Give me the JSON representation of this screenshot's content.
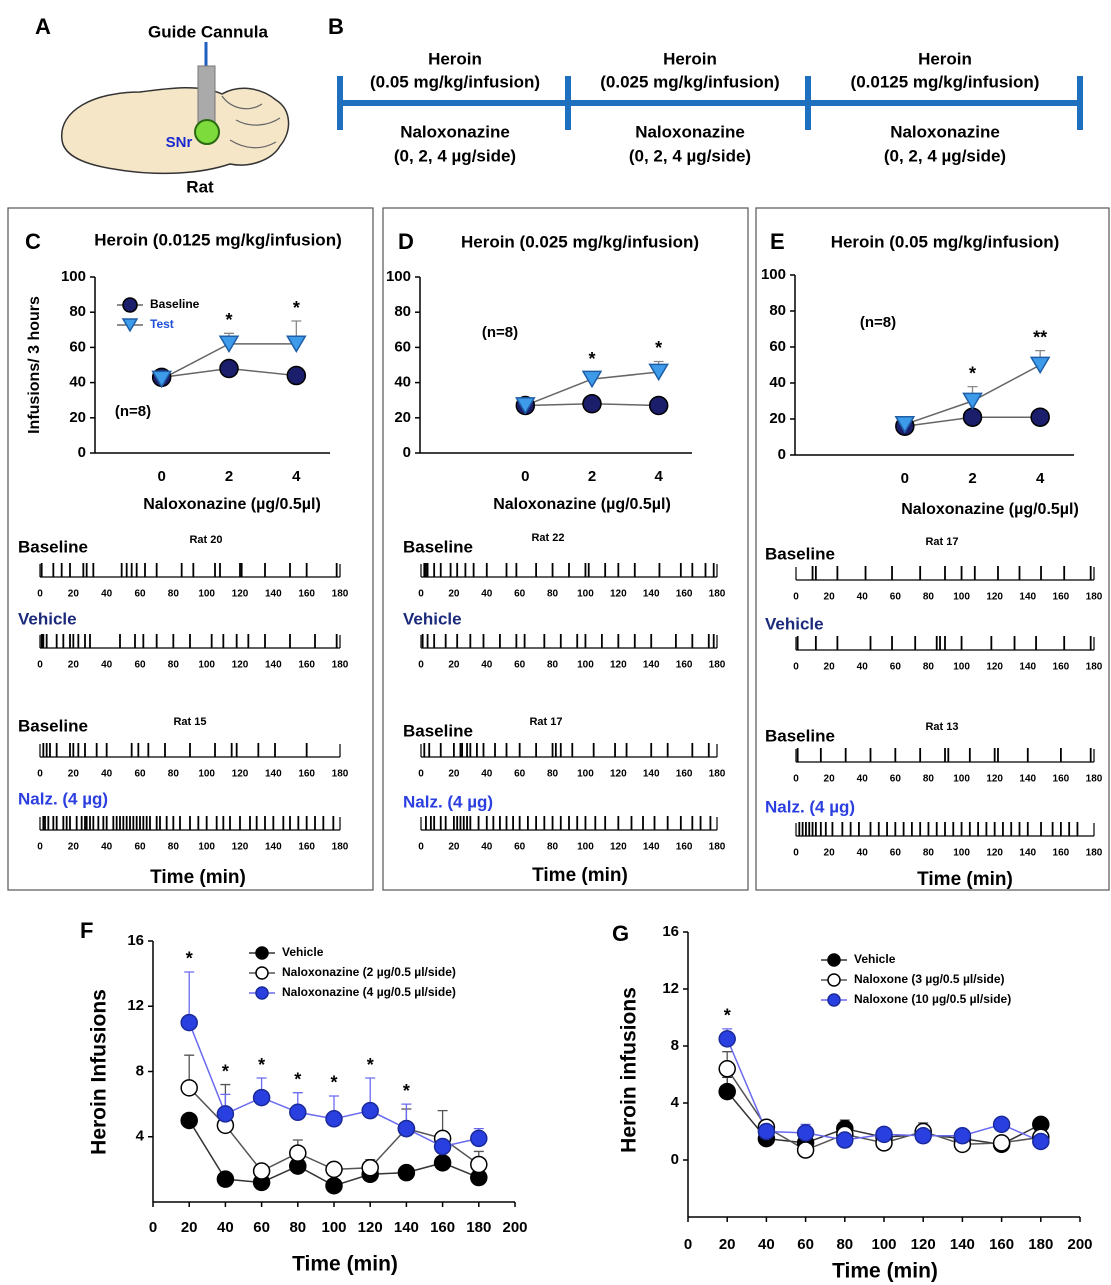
{
  "diagram": {
    "panel_a": {
      "label": "A",
      "cannula": "Guide Cannula",
      "region": "SNr",
      "species": "Rat"
    },
    "panel_b": {
      "label": "B",
      "segments": [
        {
          "drug": "Heroin",
          "heroin_dose": "(0.05 mg/kg/infusion)",
          "antagonist": "Naloxonazine",
          "antagonist_dose": "(0, 2, 4 µg/side)"
        },
        {
          "drug": "Heroin",
          "heroin_dose": "(0.025 mg/kg/infusion)",
          "antagonist": "Naloxonazine",
          "antagonist_dose": "(0, 2, 4 µg/side)"
        },
        {
          "drug": "Heroin",
          "heroin_dose": "(0.0125 mg/kg/infusion)",
          "antagonist": "Naloxonazine",
          "antagonist_dose": "(0, 2, 4 µg/side)"
        }
      ]
    }
  },
  "chart_data": [
    {
      "type": "line",
      "panel": "C",
      "title": "Heroin (0.0125 mg/kg/infusion)",
      "xlabel": "Naloxonazine (µg/0.5µl)",
      "ylabel": "Infusions/ 3 hours",
      "annotation": "(n=8)",
      "categories": [
        "0",
        "2",
        "4"
      ],
      "series": [
        {
          "name": "Baseline",
          "color": "#1b1f6b",
          "edgecolor": "#000000",
          "line_color": "#666666",
          "text_color": "#000000",
          "marker": "circle",
          "values": [
            43,
            48,
            44
          ]
        },
        {
          "name": "Test",
          "color": "#3d9be9",
          "edgecolor": "#1f5fa8",
          "line_color": "#666666",
          "text_color": "#1f4fd8",
          "marker": "triangle-down",
          "values": [
            42,
            62,
            62
          ],
          "errors": [
            2,
            6,
            13
          ]
        }
      ],
      "significance": [
        null,
        "*",
        "*"
      ],
      "ylim": [
        0,
        100
      ],
      "yticks": [
        0,
        20,
        40,
        60,
        80,
        100
      ],
      "legend": true
    },
    {
      "type": "raster",
      "title": "Rat 20",
      "xlim": [
        0,
        180
      ],
      "xticks": [
        0,
        20,
        40,
        60,
        80,
        100,
        120,
        140,
        160,
        180
      ],
      "rows": [
        {
          "name": "Baseline",
          "color": "#000000",
          "events": [
            1,
            8,
            13,
            18,
            26,
            28,
            32,
            49,
            52,
            55,
            58,
            63,
            70,
            85,
            92,
            105,
            108,
            120,
            121,
            135,
            150,
            160,
            178
          ]
        },
        {
          "name": "Vehicle",
          "color": "#1b2a7a",
          "events": [
            1,
            2,
            4,
            10,
            14,
            18,
            20,
            23,
            27,
            30,
            48,
            57,
            62,
            70,
            80,
            90,
            103,
            110,
            118,
            125,
            135,
            150,
            165,
            178
          ]
        }
      ]
    },
    {
      "type": "raster",
      "title": "Rat 15",
      "xlabel": "Time (min)",
      "xlim": [
        0,
        180
      ],
      "xticks": [
        0,
        20,
        40,
        60,
        80,
        100,
        120,
        140,
        160,
        180
      ],
      "rows": [
        {
          "name": "Baseline",
          "color": "#000000",
          "events": [
            2,
            4,
            6,
            10,
            18,
            20,
            23,
            27,
            34,
            40,
            55,
            59,
            65,
            75,
            90,
            105,
            115,
            118,
            131,
            141,
            160
          ]
        },
        {
          "name": "Nalz. (4 µg)",
          "color": "#2b3fe0",
          "events": [
            2,
            3,
            5,
            8,
            10,
            14,
            16,
            18,
            22,
            25,
            27,
            28,
            30,
            32,
            35,
            38,
            40,
            44,
            46,
            48,
            50,
            52,
            54,
            56,
            58,
            60,
            62,
            64,
            66,
            70,
            72,
            76,
            80,
            84,
            90,
            95,
            100,
            106,
            110,
            114,
            120,
            126,
            130,
            135,
            140,
            146,
            150,
            155,
            160,
            165,
            170,
            176
          ]
        }
      ]
    },
    {
      "type": "line",
      "panel": "D",
      "title": "Heroin (0.025 mg/kg/infusion)",
      "xlabel": "Naloxonazine (µg/0.5µl)",
      "annotation": "(n=8)",
      "categories": [
        "0",
        "2",
        "4"
      ],
      "series": [
        {
          "color": "#1b1f6b",
          "edgecolor": "#000000",
          "line_color": "#666666",
          "marker": "circle",
          "values": [
            27,
            28,
            27
          ]
        },
        {
          "color": "#3d9be9",
          "edgecolor": "#1f5fa8",
          "line_color": "#666666",
          "marker": "triangle-down",
          "values": [
            27,
            42,
            46
          ],
          "errors": [
            1,
            4,
            6
          ]
        }
      ],
      "significance": [
        null,
        "*",
        "*"
      ],
      "ylim": [
        0,
        100
      ],
      "yticks": [
        0,
        20,
        40,
        60,
        80,
        100
      ],
      "legend": false
    },
    {
      "type": "raster",
      "title": "Rat 22",
      "xlim": [
        0,
        180
      ],
      "xticks": [
        0,
        20,
        40,
        60,
        80,
        100,
        120,
        140,
        160,
        180
      ],
      "rows": [
        {
          "name": "Baseline",
          "color": "#000000",
          "events": [
            2,
            3,
            4,
            8,
            12,
            18,
            22,
            27,
            32,
            40,
            52,
            58,
            70,
            80,
            90,
            100,
            102,
            112,
            120,
            130,
            145,
            158,
            165,
            173,
            178
          ]
        },
        {
          "name": "Vehicle",
          "color": "#1b2a7a",
          "events": [
            1,
            4,
            8,
            15,
            22,
            30,
            38,
            48,
            58,
            63,
            75,
            85,
            95,
            100,
            110,
            120,
            130,
            140,
            155,
            165,
            175,
            178
          ]
        }
      ]
    },
    {
      "type": "raster",
      "title": "Rat 17",
      "xlabel": "Time (min)",
      "xlim": [
        0,
        180
      ],
      "xticks": [
        0,
        20,
        40,
        60,
        80,
        100,
        120,
        140,
        160,
        180
      ],
      "rows": [
        {
          "name": "Baseline",
          "color": "#000000",
          "events": [
            2,
            5,
            12,
            20,
            24,
            25,
            28,
            30,
            34,
            38,
            45,
            52,
            60,
            70,
            80,
            82,
            85,
            92,
            105,
            118,
            125,
            140,
            150,
            165,
            175
          ]
        },
        {
          "name": "Nalz. (4 µg)",
          "color": "#2b3fe0",
          "events": [
            3,
            6,
            8,
            12,
            15,
            20,
            22,
            24,
            26,
            28,
            30,
            35,
            40,
            44,
            48,
            52,
            56,
            60,
            65,
            70,
            75,
            80,
            85,
            90,
            95,
            100,
            106,
            112,
            120,
            128,
            135,
            142,
            150,
            158,
            165,
            170,
            176
          ]
        }
      ]
    },
    {
      "type": "line",
      "panel": "E",
      "title": "Heroin (0.05 mg/kg/infusion)",
      "xlabel": "Naloxonazine (µg/0.5µl)",
      "annotation": "(n=8)",
      "categories": [
        "0",
        "2",
        "4"
      ],
      "series": [
        {
          "color": "#1b1f6b",
          "edgecolor": "#000000",
          "line_color": "#666666",
          "marker": "circle",
          "values": [
            16,
            21,
            21
          ]
        },
        {
          "color": "#3d9be9",
          "edgecolor": "#1f5fa8",
          "line_color": "#666666",
          "marker": "triangle-down",
          "values": [
            17,
            30,
            50
          ],
          "errors": [
            1,
            8,
            8
          ]
        }
      ],
      "significance": [
        null,
        "*",
        "**"
      ],
      "ylim": [
        0,
        100
      ],
      "yticks": [
        0,
        20,
        40,
        60,
        80,
        100
      ],
      "legend": false
    },
    {
      "type": "raster",
      "title": "Rat 17",
      "xlim": [
        0,
        180
      ],
      "xticks": [
        0,
        20,
        40,
        60,
        80,
        100,
        120,
        140,
        160,
        180
      ],
      "rows": [
        {
          "name": "Baseline",
          "color": "#000000",
          "events": [
            10,
            12,
            25,
            42,
            58,
            75,
            90,
            100,
            108,
            122,
            135,
            148,
            162,
            178
          ]
        },
        {
          "name": "Vehicle",
          "color": "#1b2a7a",
          "events": [
            1,
            12,
            25,
            45,
            58,
            72,
            85,
            87,
            90,
            100,
            118,
            132,
            145,
            162,
            178
          ]
        }
      ]
    },
    {
      "type": "raster",
      "title": "Rat 13",
      "xlabel": "Time (min)",
      "xlim": [
        0,
        180
      ],
      "xticks": [
        0,
        20,
        40,
        60,
        80,
        100,
        120,
        140,
        160,
        180
      ],
      "rows": [
        {
          "name": "Baseline",
          "color": "#000000",
          "events": [
            1,
            15,
            30,
            45,
            60,
            75,
            90,
            92,
            105,
            120,
            122,
            140,
            160,
            178
          ]
        },
        {
          "name": "Nalz. (4 µg)",
          "color": "#2b3fe0",
          "events": [
            2,
            4,
            6,
            8,
            10,
            12,
            15,
            18,
            22,
            28,
            33,
            38,
            45,
            50,
            55,
            60,
            65,
            70,
            75,
            80,
            85,
            90,
            95,
            100,
            105,
            110,
            115,
            120,
            125,
            130,
            135,
            140,
            148,
            155,
            160,
            165,
            170
          ]
        }
      ]
    },
    {
      "type": "line",
      "panel": "F",
      "xlabel": "Time (min)",
      "ylabel": "Heroin Infusions",
      "x": [
        20,
        40,
        60,
        80,
        100,
        120,
        140,
        160,
        180
      ],
      "xlim": [
        0,
        200
      ],
      "xticks": [
        0,
        20,
        40,
        60,
        80,
        100,
        120,
        140,
        160,
        180,
        200
      ],
      "ylim": [
        0,
        16
      ],
      "yticks": [
        4,
        8,
        12,
        16
      ],
      "series": [
        {
          "name": "Vehicle",
          "color": "#000000",
          "edgecolor": "#000000",
          "line_color": "#333333",
          "text_color": "#000000",
          "marker": "circle",
          "values": [
            5,
            1.4,
            1.2,
            2.2,
            1.0,
            1.7,
            1.8,
            2.4,
            1.5
          ]
        },
        {
          "name": "Naloxonazine (2 µg/0.5 µl/side)",
          "color": "#ffffff",
          "edgecolor": "#000000",
          "line_color": "#555555",
          "text_color": "#000000",
          "marker": "circle",
          "values": [
            7,
            4.7,
            1.9,
            3.0,
            2.0,
            2.1,
            4.5,
            3.9,
            2.3
          ],
          "errors": [
            2,
            2.5,
            0.3,
            0.8,
            0.3,
            0.5,
            1.2,
            1.7,
            0.8
          ]
        },
        {
          "name": "Naloxonazine (4 µg/0.5 µl/side)",
          "color": "#2a3fe0",
          "edgecolor": "#1a2a9a",
          "line_color": "#6a6af0",
          "text_color": "#000000",
          "marker": "circle",
          "values": [
            11,
            5.4,
            6.4,
            5.5,
            5.1,
            5.6,
            4.5,
            3.4,
            3.9
          ],
          "errors": [
            3.1,
            1.2,
            1.2,
            1.2,
            1.4,
            2,
            1.5,
            0.8,
            0.6
          ]
        }
      ],
      "significance": [
        "*",
        "*",
        "*",
        "*",
        "*",
        "*",
        "*",
        null,
        null
      ],
      "legend": true
    },
    {
      "type": "line",
      "panel": "G",
      "xlabel": "Time (min)",
      "ylabel": "Heroin infusions",
      "x": [
        20,
        40,
        60,
        80,
        100,
        120,
        140,
        160,
        180
      ],
      "xlim": [
        0,
        200
      ],
      "xticks": [
        0,
        20,
        40,
        60,
        80,
        100,
        120,
        140,
        160,
        180,
        200
      ],
      "ylim": [
        -4,
        16
      ],
      "yticks": [
        0,
        4,
        8,
        12,
        16
      ],
      "series": [
        {
          "name": "Vehicle",
          "color": "#000000",
          "edgecolor": "#000000",
          "line_color": "#333333",
          "text_color": "#000000",
          "marker": "circle",
          "values": [
            4.8,
            1.5,
            1.2,
            2.2,
            1.6,
            1.8,
            1.5,
            1.1,
            2.5
          ],
          "errors": [
            1,
            0.3,
            0.3,
            0.6,
            0.3,
            0.3,
            0.3,
            0.3,
            0.3
          ]
        },
        {
          "name": "Naloxone (3 µg/0.5 µl/side)",
          "color": "#ffffff",
          "edgecolor": "#000000",
          "line_color": "#555555",
          "text_color": "#000000",
          "marker": "circle",
          "values": [
            6.4,
            2.3,
            0.7,
            1.8,
            1.2,
            2.0,
            1.1,
            1.2,
            1.6
          ],
          "errors": [
            1.2,
            0.4,
            0.3,
            0.5,
            0.3,
            0.6,
            0.3,
            0.3,
            0.4
          ]
        },
        {
          "name": "Naloxone (10 µg/0.5 µl/side)",
          "color": "#2a3fe0",
          "edgecolor": "#1a2a9a",
          "line_color": "#6a6af0",
          "text_color": "#000000",
          "marker": "circle",
          "values": [
            8.5,
            2.0,
            1.9,
            1.4,
            1.8,
            1.7,
            1.7,
            2.5,
            1.3
          ],
          "errors": [
            0.7,
            0.3,
            0.6,
            0.3,
            0.3,
            0.4,
            0.3,
            0.3,
            0.3
          ]
        }
      ],
      "significance": [
        "*",
        null,
        null,
        null,
        null,
        null,
        null,
        null,
        null
      ],
      "legend": true
    }
  ]
}
